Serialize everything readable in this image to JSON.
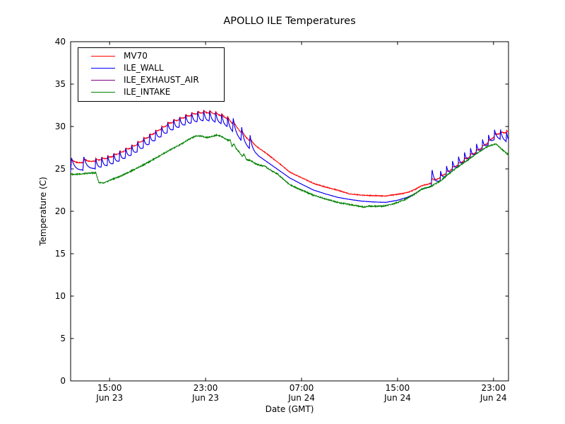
{
  "chart_data": {
    "type": "line",
    "title": "APOLLO ILE Temperatures",
    "xlabel": "Date (GMT)",
    "ylabel": "Temperature (C)",
    "background": "#ffffff",
    "axes_color": "#000000",
    "grid": false,
    "legend_position": "upper left",
    "ylim": [
      0,
      40
    ],
    "yticks": [
      0,
      5,
      10,
      15,
      20,
      25,
      30,
      35,
      40
    ],
    "x_hours_from": "Jun 23 12:00",
    "x_range": [
      -0.25,
      36.25
    ],
    "xticks": [
      {
        "t": 3,
        "time": "15:00",
        "date": "Jun 23"
      },
      {
        "t": 11,
        "time": "23:00",
        "date": "Jun 23"
      },
      {
        "t": 19,
        "time": "07:00",
        "date": "Jun 24"
      },
      {
        "t": 27,
        "time": "15:00",
        "date": "Jun 24"
      },
      {
        "t": 35,
        "time": "23:00",
        "date": "Jun 24"
      }
    ],
    "sawtooth_regions": [
      {
        "t0": -0.25,
        "t1": 1.8,
        "period": 1.02,
        "amps": {
          "MV70": 0.55,
          "ILE_WALL": 1.6,
          "ILE_EXHAUST_AIR": 1.6
        }
      },
      {
        "t0": 1.8,
        "t1": 13.25,
        "period": 0.5,
        "amps": {
          "MV70": 0.35,
          "ILE_WALL": 1.3,
          "ILE_EXHAUST_AIR": 1.3
        }
      },
      {
        "t0": 13.25,
        "t1": 15.35,
        "period": 0.7,
        "amps": {
          "MV70": 0.45,
          "ILE_WALL": 1.7,
          "ILE_EXHAUST_AIR": 1.7
        }
      },
      {
        "t0": 29.82,
        "t1": 30.55,
        "period": 0.73,
        "amps": {
          "MV70": 0.5,
          "ILE_WALL": 2.0,
          "ILE_EXHAUST_AIR": 2.0
        }
      },
      {
        "t0": 30.55,
        "t1": 36.25,
        "period": 0.5,
        "amps": {
          "MV70": 0.3,
          "ILE_WALL": 1.15,
          "ILE_EXHAUST_AIR": 1.15
        }
      }
    ],
    "series": [
      {
        "name": "MV70",
        "color": "#ff0000",
        "noise": 0.05,
        "draw_order": 2,
        "base": [
          [
            -0.25,
            25.6
          ],
          [
            1,
            25.75
          ],
          [
            1.8,
            25.9
          ],
          [
            3,
            26.3
          ],
          [
            4,
            26.9
          ],
          [
            5,
            27.6
          ],
          [
            6,
            28.5
          ],
          [
            7,
            29.4
          ],
          [
            8,
            30.3
          ],
          [
            9,
            30.9
          ],
          [
            10,
            31.4
          ],
          [
            10.8,
            31.6
          ],
          [
            11.5,
            31.55
          ],
          [
            12.2,
            31.3
          ],
          [
            12.8,
            30.9
          ],
          [
            13.5,
            30.0
          ],
          [
            14,
            29.2
          ],
          [
            14.5,
            28.5
          ],
          [
            15,
            27.9
          ],
          [
            15.5,
            27.4
          ],
          [
            16,
            26.9
          ],
          [
            17,
            25.8
          ],
          [
            18,
            24.65
          ],
          [
            19,
            23.95
          ],
          [
            20,
            23.3
          ],
          [
            21,
            22.85
          ],
          [
            22,
            22.5
          ],
          [
            23,
            22.05
          ],
          [
            24,
            21.9
          ],
          [
            25,
            21.85
          ],
          [
            26,
            21.8
          ],
          [
            27,
            22.0
          ],
          [
            27.8,
            22.2
          ],
          [
            28.5,
            22.6
          ],
          [
            29,
            23.0
          ],
          [
            29.8,
            23.3
          ],
          [
            30.5,
            23.9
          ],
          [
            31.7,
            25.1
          ],
          [
            32.7,
            26.1
          ],
          [
            33.7,
            27.1
          ],
          [
            34.5,
            28.0
          ],
          [
            35.2,
            29.0
          ],
          [
            35.7,
            29.2
          ],
          [
            36.25,
            29.25
          ]
        ]
      },
      {
        "name": "ILE_WALL",
        "color": "#0000ff",
        "noise": 0.015,
        "draw_order": 3,
        "base": [
          [
            -0.25,
            24.7
          ],
          [
            1,
            24.85
          ],
          [
            1.8,
            25.0
          ],
          [
            3,
            25.4
          ],
          [
            4,
            26.0
          ],
          [
            5,
            26.7
          ],
          [
            6,
            27.6
          ],
          [
            7,
            28.5
          ],
          [
            8,
            29.4
          ],
          [
            9,
            30.0
          ],
          [
            10,
            30.45
          ],
          [
            10.8,
            30.65
          ],
          [
            11.5,
            30.6
          ],
          [
            12.2,
            30.35
          ],
          [
            12.8,
            29.95
          ],
          [
            13.5,
            29.05
          ],
          [
            14,
            28.25
          ],
          [
            14.5,
            27.55
          ],
          [
            15,
            26.95
          ],
          [
            15.5,
            26.45
          ],
          [
            16,
            25.95
          ],
          [
            17,
            24.95
          ],
          [
            18,
            23.95
          ],
          [
            19,
            23.2
          ],
          [
            20,
            22.5
          ],
          [
            21,
            22.05
          ],
          [
            22,
            21.65
          ],
          [
            23,
            21.4
          ],
          [
            24,
            21.2
          ],
          [
            25,
            21.1
          ],
          [
            26,
            21.05
          ],
          [
            27,
            21.3
          ],
          [
            27.8,
            21.65
          ],
          [
            28.5,
            22.1
          ],
          [
            29,
            22.6
          ],
          [
            29.8,
            22.9
          ],
          [
            30.5,
            23.5
          ],
          [
            31.7,
            24.9
          ],
          [
            32.7,
            25.9
          ],
          [
            33.7,
            26.9
          ],
          [
            34.5,
            27.75
          ],
          [
            35.2,
            28.6
          ],
          [
            35.7,
            28.45
          ],
          [
            36.25,
            28.1
          ]
        ]
      },
      {
        "name": "ILE_EXHAUST_AIR",
        "color": "#800080",
        "noise": 0.0,
        "draw_order": 1,
        "coincides_with": "ILE_WALL",
        "note": "overlaps ILE_WALL trace; hidden beneath it in the plot"
      },
      {
        "name": "ILE_INTAKE",
        "color": "#008000",
        "noise": 0.07,
        "draw_order": 4,
        "base": [
          [
            -0.25,
            24.35
          ],
          [
            0.6,
            24.4
          ],
          [
            1.3,
            24.5
          ],
          [
            1.85,
            24.55
          ],
          [
            2.1,
            23.4
          ],
          [
            2.5,
            23.3
          ],
          [
            3,
            23.65
          ],
          [
            4,
            24.2
          ],
          [
            5,
            24.9
          ],
          [
            6,
            25.6
          ],
          [
            7,
            26.4
          ],
          [
            8,
            27.2
          ],
          [
            9,
            27.95
          ],
          [
            9.6,
            28.5
          ],
          [
            10.2,
            28.9
          ],
          [
            10.7,
            28.85
          ],
          [
            11.1,
            28.7
          ],
          [
            11.5,
            28.8
          ],
          [
            11.9,
            29.0
          ],
          [
            12.2,
            28.9
          ],
          [
            12.6,
            28.6
          ],
          [
            12.9,
            28.35
          ],
          [
            13.05,
            28.45
          ],
          [
            13.2,
            27.6
          ],
          [
            13.35,
            28.0
          ],
          [
            13.55,
            27.4
          ],
          [
            13.8,
            27.0
          ],
          [
            14.05,
            26.5
          ],
          [
            14.2,
            26.75
          ],
          [
            14.4,
            26.1
          ],
          [
            14.75,
            26.0
          ],
          [
            15.15,
            25.6
          ],
          [
            15.55,
            25.4
          ],
          [
            15.95,
            25.3
          ],
          [
            16.35,
            24.9
          ],
          [
            17,
            24.4
          ],
          [
            18,
            23.15
          ],
          [
            19,
            22.5
          ],
          [
            20,
            21.9
          ],
          [
            21,
            21.45
          ],
          [
            22,
            21.05
          ],
          [
            23,
            20.8
          ],
          [
            23.85,
            20.6
          ],
          [
            24.15,
            20.5
          ],
          [
            24.6,
            20.6
          ],
          [
            25.8,
            20.6
          ],
          [
            26.6,
            20.85
          ],
          [
            27,
            21.05
          ],
          [
            27.8,
            21.5
          ],
          [
            28.5,
            22.1
          ],
          [
            29,
            22.6
          ],
          [
            29.8,
            22.95
          ],
          [
            30.5,
            23.5
          ],
          [
            31.7,
            24.9
          ],
          [
            32.7,
            25.9
          ],
          [
            33.7,
            26.9
          ],
          [
            34.5,
            27.65
          ],
          [
            35.2,
            27.95
          ],
          [
            35.55,
            27.5
          ],
          [
            35.95,
            27.0
          ],
          [
            36.25,
            26.65
          ]
        ]
      }
    ]
  }
}
